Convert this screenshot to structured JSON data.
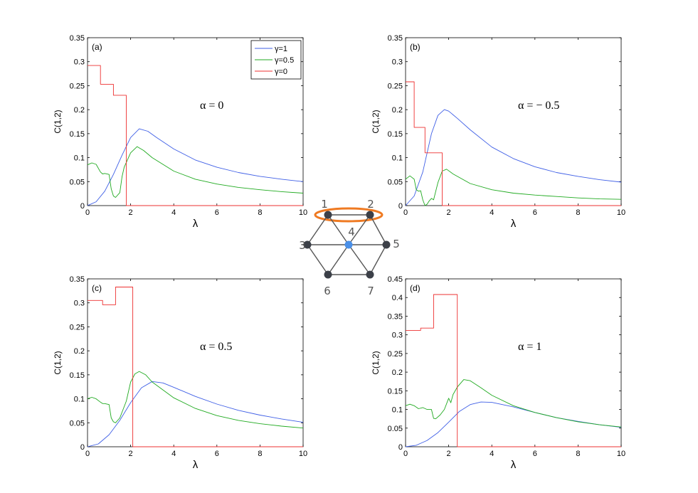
{
  "colors": {
    "gamma1": "#3f5fe6",
    "gamma05": "#20aa20",
    "gamma0": "#ee3030",
    "node": "#3c4048",
    "center_node": "#4a90e8",
    "edge": "#555555",
    "highlight": "#ef7a22"
  },
  "legend": [
    "γ=1",
    "γ=0.5",
    "γ=0"
  ],
  "network": {
    "nodes": [
      "1",
      "2",
      "3",
      "4",
      "5",
      "6",
      "7"
    ]
  },
  "chart_data": [
    {
      "type": "line",
      "panel": "(a)",
      "annotation": "α = 0",
      "xlabel": "λ",
      "ylabel": "C(1,2)",
      "xlim": [
        0,
        10
      ],
      "ylim": [
        0,
        0.35
      ],
      "xticks": [
        "0",
        "2",
        "4",
        "6",
        "8",
        "10"
      ],
      "yticks": [
        "0",
        "0.05",
        "0.1",
        "0.15",
        "0.2",
        "0.25",
        "0.3",
        "0.35"
      ],
      "legend_location": "top-right",
      "series": [
        {
          "name": "γ=1",
          "x": [
            0,
            0.4,
            0.8,
            1.2,
            1.6,
            2.0,
            2.4,
            2.8,
            3.2,
            4,
            5,
            6,
            7,
            8,
            9,
            10
          ],
          "y": [
            0,
            0.008,
            0.03,
            0.065,
            0.105,
            0.142,
            0.16,
            0.155,
            0.142,
            0.118,
            0.095,
            0.08,
            0.069,
            0.061,
            0.055,
            0.05
          ]
        },
        {
          "name": "γ=0.5",
          "x": [
            0,
            0.2,
            0.4,
            0.6,
            0.7,
            0.8,
            1.0,
            1.1,
            1.2,
            1.3,
            1.5,
            1.6,
            1.7,
            2.0,
            2.3,
            2.6,
            3,
            4,
            5,
            6,
            7,
            8,
            9,
            10
          ],
          "y": [
            0.085,
            0.089,
            0.086,
            0.07,
            0.066,
            0.067,
            0.065,
            0.035,
            0.02,
            0.017,
            0.027,
            0.06,
            0.08,
            0.11,
            0.123,
            0.115,
            0.1,
            0.072,
            0.055,
            0.045,
            0.038,
            0.033,
            0.029,
            0.026
          ]
        },
        {
          "name": "γ=0",
          "x": [
            0,
            0.6,
            0.6,
            1.2,
            1.2,
            1.8,
            1.8,
            10
          ],
          "y": [
            0.292,
            0.292,
            0.253,
            0.253,
            0.23,
            0.23,
            0,
            0
          ]
        }
      ]
    },
    {
      "type": "line",
      "panel": "(b)",
      "annotation": "α = − 0.5",
      "xlabel": "λ",
      "ylabel": "C(1,2)",
      "xlim": [
        0,
        10
      ],
      "ylim": [
        0,
        0.35
      ],
      "xticks": [
        "0",
        "2",
        "4",
        "6",
        "8",
        "10"
      ],
      "yticks": [
        "0",
        "0.05",
        "0.1",
        "0.15",
        "0.2",
        "0.25",
        "0.3",
        "0.35"
      ],
      "series": [
        {
          "name": "γ=1",
          "x": [
            0,
            0.4,
            0.8,
            1.2,
            1.5,
            1.8,
            2.0,
            2.4,
            3,
            4,
            5,
            6,
            7,
            8,
            9,
            10
          ],
          "y": [
            0,
            0.02,
            0.07,
            0.15,
            0.188,
            0.2,
            0.197,
            0.182,
            0.158,
            0.122,
            0.098,
            0.081,
            0.069,
            0.061,
            0.054,
            0.049
          ]
        },
        {
          "name": "γ=0.5",
          "x": [
            0,
            0.2,
            0.4,
            0.5,
            0.6,
            0.7,
            0.8,
            0.9,
            1.0,
            1.1,
            1.2,
            1.3,
            1.5,
            1.7,
            1.9,
            2.2,
            3,
            4,
            5,
            6,
            7,
            8,
            9,
            10
          ],
          "y": [
            0.055,
            0.062,
            0.055,
            0.033,
            0.03,
            0.031,
            0.012,
            0.0,
            0.003,
            0.01,
            0.015,
            0.012,
            0.048,
            0.072,
            0.076,
            0.066,
            0.046,
            0.033,
            0.026,
            0.022,
            0.019,
            0.016,
            0.014,
            0.013
          ]
        },
        {
          "name": "γ=0",
          "x": [
            0,
            0.4,
            0.4,
            0.9,
            0.9,
            1.7,
            1.7,
            10
          ],
          "y": [
            0.258,
            0.258,
            0.163,
            0.163,
            0.11,
            0.11,
            0,
            0
          ]
        }
      ]
    },
    {
      "type": "line",
      "panel": "(c)",
      "annotation": "α = 0.5",
      "xlabel": "λ",
      "ylabel": "C(1,2)",
      "xlim": [
        0,
        10
      ],
      "ylim": [
        0,
        0.35
      ],
      "xticks": [
        "0",
        "2",
        "4",
        "6",
        "8",
        "10"
      ],
      "yticks": [
        "0",
        "0.05",
        "0.1",
        "0.15",
        "0.2",
        "0.25",
        "0.3",
        "0.35"
      ],
      "series": [
        {
          "name": "γ=1",
          "x": [
            0,
            0.5,
            1.0,
            1.5,
            2.0,
            2.5,
            3.0,
            3.5,
            4,
            5,
            6,
            7,
            8,
            9,
            10
          ],
          "y": [
            0,
            0.006,
            0.025,
            0.055,
            0.092,
            0.123,
            0.136,
            0.133,
            0.124,
            0.105,
            0.089,
            0.076,
            0.066,
            0.058,
            0.051
          ]
        },
        {
          "name": "γ=0.5",
          "x": [
            0,
            0.2,
            0.4,
            0.6,
            0.7,
            0.8,
            1.0,
            1.1,
            1.2,
            1.3,
            1.5,
            1.8,
            2.0,
            2.2,
            2.4,
            2.7,
            3,
            4,
            5,
            6,
            7,
            8,
            9,
            10
          ],
          "y": [
            0.1,
            0.103,
            0.1,
            0.093,
            0.09,
            0.09,
            0.088,
            0.06,
            0.052,
            0.05,
            0.06,
            0.095,
            0.135,
            0.152,
            0.157,
            0.15,
            0.135,
            0.102,
            0.08,
            0.065,
            0.055,
            0.048,
            0.043,
            0.039
          ]
        },
        {
          "name": "γ=0",
          "x": [
            0,
            0.7,
            0.7,
            1.3,
            1.3,
            2.1,
            2.1,
            10
          ],
          "y": [
            0.305,
            0.305,
            0.296,
            0.296,
            0.333,
            0.333,
            0,
            0
          ]
        }
      ]
    },
    {
      "type": "line",
      "panel": "(d)",
      "annotation": "α = 1",
      "xlabel": "λ",
      "ylabel": "C(1,2)",
      "xlim": [
        0,
        10
      ],
      "ylim": [
        0,
        0.45
      ],
      "xticks": [
        "0",
        "2",
        "4",
        "6",
        "8",
        "10"
      ],
      "yticks": [
        "0",
        "0.05",
        "0.1",
        "0.15",
        "0.2",
        "0.25",
        "0.3",
        "0.35",
        "0.4",
        "0.45"
      ],
      "series": [
        {
          "name": "γ=1",
          "x": [
            0,
            0.5,
            1.0,
            1.5,
            2.0,
            2.5,
            3.0,
            3.5,
            4,
            5,
            6,
            7,
            8,
            9,
            10
          ],
          "y": [
            0,
            0.004,
            0.017,
            0.038,
            0.066,
            0.095,
            0.113,
            0.12,
            0.119,
            0.107,
            0.092,
            0.078,
            0.068,
            0.059,
            0.052
          ]
        },
        {
          "name": "γ=0.5",
          "x": [
            0,
            0.2,
            0.4,
            0.6,
            0.8,
            1.0,
            1.2,
            1.3,
            1.4,
            1.6,
            1.8,
            2.0,
            2.1,
            2.2,
            2.4,
            2.7,
            3,
            3.5,
            4,
            5,
            6,
            7,
            8,
            9,
            10
          ],
          "y": [
            0.11,
            0.114,
            0.11,
            0.102,
            0.105,
            0.1,
            0.1,
            0.076,
            0.075,
            0.085,
            0.1,
            0.13,
            0.118,
            0.14,
            0.16,
            0.18,
            0.177,
            0.158,
            0.138,
            0.11,
            0.092,
            0.078,
            0.067,
            0.059,
            0.053
          ]
        },
        {
          "name": "γ=0",
          "x": [
            0,
            0.7,
            0.7,
            1.3,
            1.3,
            2.4,
            2.4,
            10
          ],
          "y": [
            0.312,
            0.312,
            0.318,
            0.318,
            0.408,
            0.408,
            0,
            0
          ]
        }
      ]
    }
  ]
}
